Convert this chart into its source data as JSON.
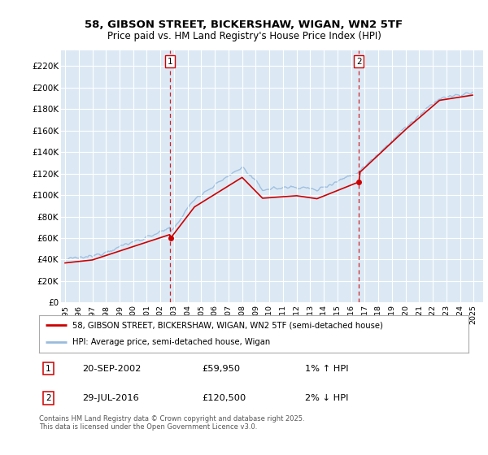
{
  "title1": "58, GIBSON STREET, BICKERSHAW, WIGAN, WN2 5TF",
  "title2": "Price paid vs. HM Land Registry's House Price Index (HPI)",
  "chart_bg_color": "#dce9f5",
  "outer_bg_color": "#ffffff",
  "red_line_color": "#cc0000",
  "blue_line_color": "#99bbdd",
  "grid_color": "#ffffff",
  "yticks": [
    0,
    20000,
    40000,
    60000,
    80000,
    100000,
    120000,
    140000,
    160000,
    180000,
    200000,
    220000
  ],
  "sale1_date": "20-SEP-2002",
  "sale1_price": 59950,
  "sale1_hpi_change": "1% ↑ HPI",
  "sale2_date": "29-JUL-2016",
  "sale2_price": 120500,
  "sale2_hpi_change": "2% ↓ HPI",
  "legend_label_red": "58, GIBSON STREET, BICKERSHAW, WIGAN, WN2 5TF (semi-detached house)",
  "legend_label_blue": "HPI: Average price, semi-detached house, Wigan",
  "footer": "Contains HM Land Registry data © Crown copyright and database right 2025.\nThis data is licensed under the Open Government Licence v3.0."
}
